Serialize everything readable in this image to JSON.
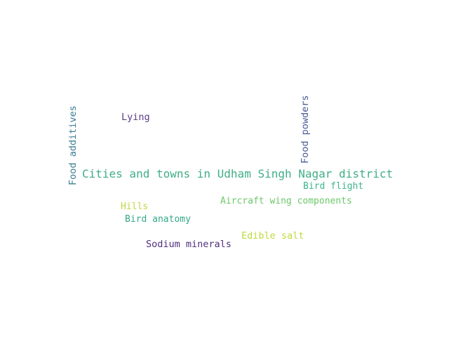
{
  "words": [
    {
      "text": "Cities and towns in Udham Singh Nagar district",
      "color": "#3fae85"
    },
    {
      "text": "Food additives",
      "color": "#3c7c91"
    },
    {
      "text": "Food powders",
      "color": "#4a5a94"
    },
    {
      "text": "Lying",
      "color": "#5a3a86"
    },
    {
      "text": "Bird flight",
      "color": "#3fb58a"
    },
    {
      "text": "Aircraft wing components",
      "color": "#6cc86a"
    },
    {
      "text": "Hills",
      "color": "#c4d640"
    },
    {
      "text": "Bird anatomy",
      "color": "#35a888"
    },
    {
      "text": "Edible salt",
      "color": "#bedb3c"
    },
    {
      "text": "Sodium minerals",
      "color": "#4e2f7c"
    }
  ]
}
